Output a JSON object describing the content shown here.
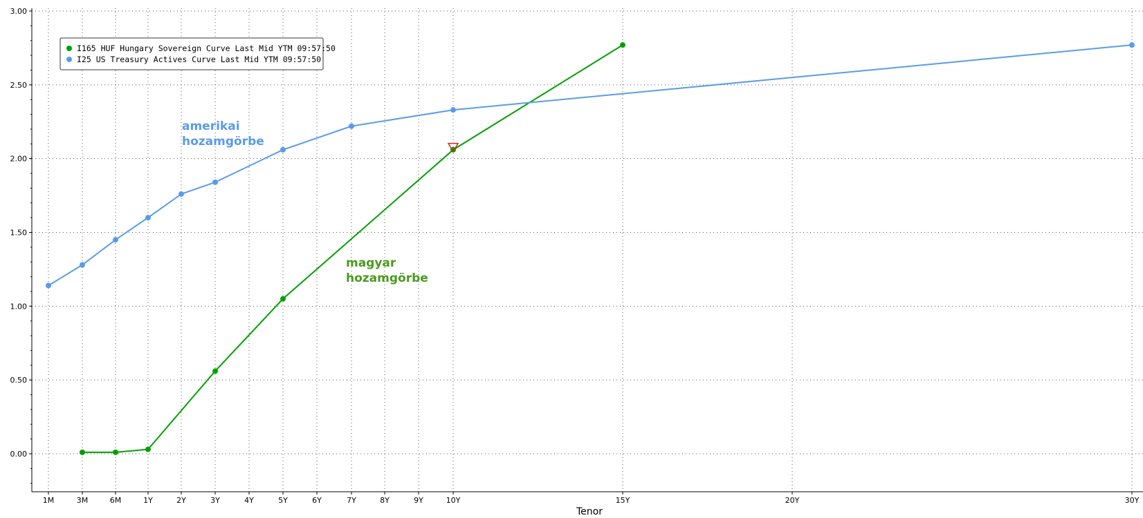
{
  "chart_data": {
    "type": "line",
    "title": "",
    "xlabel": "Tenor",
    "ylabel": "",
    "ylim": [
      -0.25,
      3.0
    ],
    "yticks": [
      "3.00",
      "2.50",
      "2.00",
      "1.50",
      "1.00",
      "0.50",
      "0.00"
    ],
    "categories": [
      "1M",
      "3M",
      "6M",
      "1Y",
      "2Y",
      "3Y",
      "4Y",
      "5Y",
      "6Y",
      "7Y",
      "8Y",
      "9Y",
      "10Y",
      "15Y",
      "20Y",
      "30Y"
    ],
    "grid": true,
    "legend_position": "top-left",
    "series": [
      {
        "name": "I165 HUF Hungary Sovereign Curve Last Mid YTM 09:57:50",
        "color": "#00a000",
        "points": [
          {
            "x": "3M",
            "y": 0.01
          },
          {
            "x": "6M",
            "y": 0.01
          },
          {
            "x": "1Y",
            "y": 0.03
          },
          {
            "x": "3Y",
            "y": 0.56
          },
          {
            "x": "5Y",
            "y": 1.05
          },
          {
            "x": "10Y",
            "y": 2.06
          },
          {
            "x": "15Y",
            "y": 2.77
          }
        ]
      },
      {
        "name": "I25 US Treasury Actives Curve Last Mid YTM 09:57:50",
        "color": "#5a9bea",
        "points": [
          {
            "x": "1M",
            "y": 1.14
          },
          {
            "x": "3M",
            "y": 1.28
          },
          {
            "x": "6M",
            "y": 1.45
          },
          {
            "x": "1Y",
            "y": 1.6
          },
          {
            "x": "2Y",
            "y": 1.76
          },
          {
            "x": "3Y",
            "y": 1.84
          },
          {
            "x": "5Y",
            "y": 2.06
          },
          {
            "x": "7Y",
            "y": 2.22
          },
          {
            "x": "10Y",
            "y": 2.33
          },
          {
            "x": "30Y",
            "y": 2.77
          }
        ]
      }
    ],
    "annotations": [
      {
        "lines": [
          "amerikai",
          "hozamgörbe"
        ],
        "color": "#5a9bea"
      },
      {
        "lines": [
          "magyar",
          "hozamgörbe"
        ],
        "color": "#4a9a1e"
      }
    ],
    "marker_note": {
      "x": "10Y",
      "y": 2.08,
      "color": "#e02020"
    }
  }
}
